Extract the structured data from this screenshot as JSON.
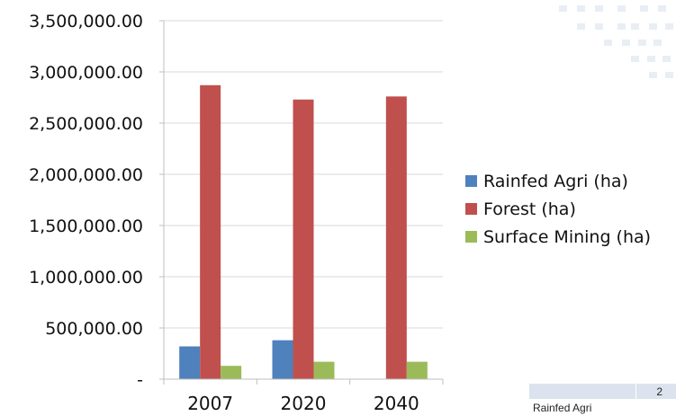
{
  "chart_data": {
    "type": "bar",
    "categories": [
      "2007",
      "2020",
      "2040"
    ],
    "series": [
      {
        "name": "Rainfed Agri (ha)",
        "color": "#4f81bd",
        "values": [
          320000,
          380000,
          0
        ]
      },
      {
        "name": "Forest (ha)",
        "color": "#c0504d",
        "values": [
          2870000,
          2730000,
          2760000
        ]
      },
      {
        "name": "Surface Mining (ha)",
        "color": "#9bbb59",
        "values": [
          130000,
          170000,
          170000
        ]
      }
    ],
    "yticks": [
      {
        "value": 0,
        "label": "-"
      },
      {
        "value": 500000,
        "label": "500,000.00"
      },
      {
        "value": 1000000,
        "label": "1,000,000.00"
      },
      {
        "value": 1500000,
        "label": "1,500,000.00"
      },
      {
        "value": 2000000,
        "label": "2,000,000.00"
      },
      {
        "value": 2500000,
        "label": "2,500,000.00"
      },
      {
        "value": 3000000,
        "label": "3,000,000.00"
      },
      {
        "value": 3500000,
        "label": "3,500,000.00"
      }
    ],
    "ylim": [
      0,
      3500000
    ],
    "grid": true,
    "legend_position": "right"
  },
  "table_fragment": {
    "header_year": "2",
    "row_label": "Rainfed Agri"
  }
}
